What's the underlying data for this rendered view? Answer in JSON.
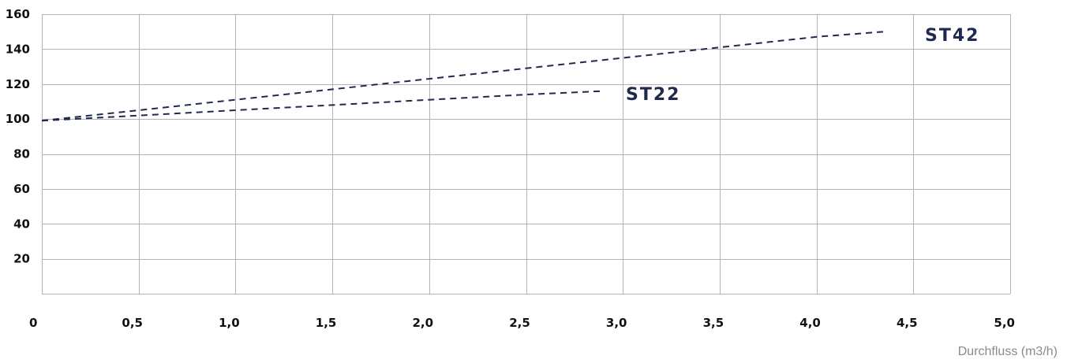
{
  "chart_data": {
    "type": "line",
    "xlabel": "Durchfluss (m3/h)",
    "ylabel": "",
    "xlim": [
      0,
      5.0
    ],
    "ylim": [
      0,
      160
    ],
    "x_ticks": [
      "0",
      "0,5",
      "1,0",
      "1,5",
      "2,0",
      "2,5",
      "3,0",
      "3,5",
      "4,0",
      "4,5",
      "5,0"
    ],
    "y_ticks": [
      "20",
      "40",
      "60",
      "80",
      "100",
      "120",
      "140",
      "160"
    ],
    "grid": true,
    "series": [
      {
        "name": "ST42",
        "color": "#1f2a4d",
        "x": [
          0,
          0.5,
          1.0,
          1.5,
          2.0,
          2.5,
          3.0,
          3.5,
          4.0,
          4.35
        ],
        "y": [
          99,
          105,
          111,
          117,
          123,
          129,
          135,
          141,
          147,
          150
        ]
      },
      {
        "name": "ST22",
        "color": "#1f2a4d",
        "x": [
          0,
          0.5,
          1.0,
          1.5,
          2.0,
          2.5,
          2.9
        ],
        "y": [
          99,
          102,
          105,
          108,
          111,
          114,
          116
        ]
      }
    ]
  }
}
